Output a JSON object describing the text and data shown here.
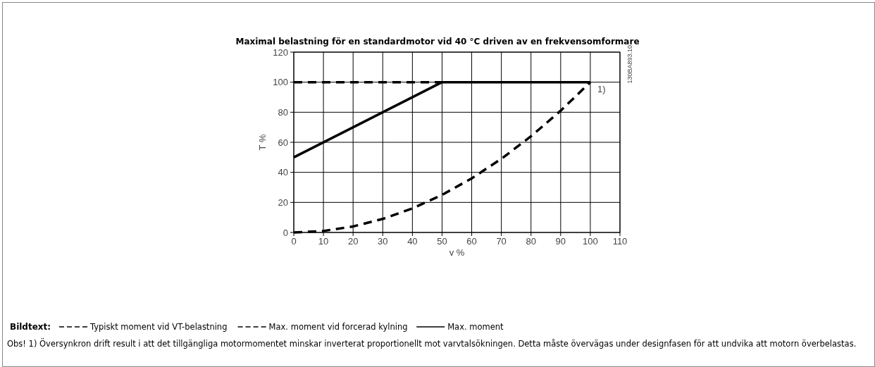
{
  "chart_data": {
    "type": "line",
    "title": "Maximal belastning för en standardmotor vid 40 °C driven av en frekvensomformare",
    "xlabel": "v %",
    "ylabel": "T %",
    "legend_title": "Bildtext:",
    "x": [
      0,
      10,
      20,
      30,
      40,
      50,
      60,
      70,
      80,
      90,
      100
    ],
    "series": [
      {
        "name": "Typiskt moment vid VT-belastning",
        "color": "#000000",
        "line_style": "dashed",
        "values": [
          0,
          1,
          4,
          9,
          16,
          25,
          36,
          49,
          64,
          81,
          100
        ]
      },
      {
        "name": "Max. moment vid forcerad kylning",
        "color": "#000000",
        "line_style": "dashed",
        "x": [
          0,
          50
        ],
        "values": [
          100,
          100
        ]
      },
      {
        "name": "Max. moment",
        "color": "#000000",
        "line_style": "solid",
        "x": [
          0,
          50,
          100
        ],
        "values": [
          50,
          100,
          100
        ]
      }
    ],
    "xlim": [
      0,
      110
    ],
    "xticks": [
      0,
      10,
      20,
      30,
      40,
      50,
      60,
      70,
      80,
      90,
      100,
      110
    ],
    "ylim": [
      0,
      120
    ],
    "yticks": [
      0,
      20,
      40,
      60,
      80,
      100,
      120
    ],
    "grid": true,
    "legend": "bottom",
    "marker": "none",
    "annotations": [
      {
        "text": "1)",
        "x": 100,
        "y": 100
      },
      "130BA893.10",
      "Obs! 1) Översynkron drift result i att det tillgängliga motormomentet minskar inverterat proportionellt mot varvtalsökningen. Detta måste övervägas under designfasen för att undvika att motorn överbelastas."
    ]
  }
}
